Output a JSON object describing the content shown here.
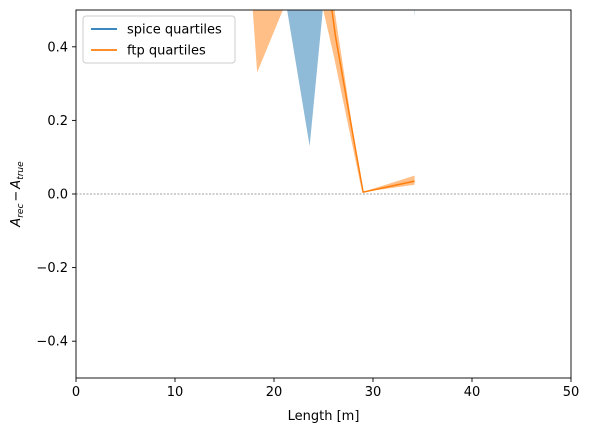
{
  "chart_data": {
    "type": "line",
    "xlabel": "Length [m]",
    "ylabel_main": "A",
    "ylabel_sub1": "rec",
    "ylabel_minus": "−",
    "ylabel_sub2": "true",
    "xlim": [
      0,
      50
    ],
    "ylim": [
      -0.5,
      0.5
    ],
    "xticks": [
      0,
      10,
      20,
      30,
      40,
      50
    ],
    "xtick_labels": [
      "0",
      "10",
      "20",
      "30",
      "40",
      "50"
    ],
    "yticks": [
      -0.4,
      -0.2,
      0.0,
      0.2,
      0.4
    ],
    "ytick_labels": [
      "−0.4",
      "−0.2",
      "0.0",
      "0.2",
      "0.4"
    ],
    "reference_line_y": 0.0,
    "legend_position": "top-left",
    "series": [
      {
        "name": "spice quartiles",
        "color": "#1f77b4",
        "median_x": [],
        "median_y": [],
        "band_x": [
          21.2,
          23.6,
          25.0,
          34.2,
          34.2,
          34.3
        ],
        "band_lower": [
          0.52,
          0.13,
          0.52,
          0.52,
          0.48,
          0.52
        ],
        "band_upper": [
          0.52,
          0.52,
          0.52,
          0.52,
          0.52,
          0.52
        ]
      },
      {
        "name": "ftp quartiles",
        "color": "#ff7f0e",
        "median_x": [
          25.6,
          26.2,
          29.0,
          34.2
        ],
        "median_y": [
          0.55,
          0.43,
          0.005,
          0.035
        ],
        "band_x": [
          17.8,
          18.3,
          21.2,
          24.8,
          26.0,
          28.9,
          34.2
        ],
        "band_lower": [
          0.52,
          0.33,
          0.52,
          0.52,
          0.38,
          0.005,
          0.025
        ],
        "band_upper": [
          0.52,
          0.52,
          0.52,
          0.52,
          0.52,
          0.005,
          0.05
        ]
      }
    ]
  }
}
